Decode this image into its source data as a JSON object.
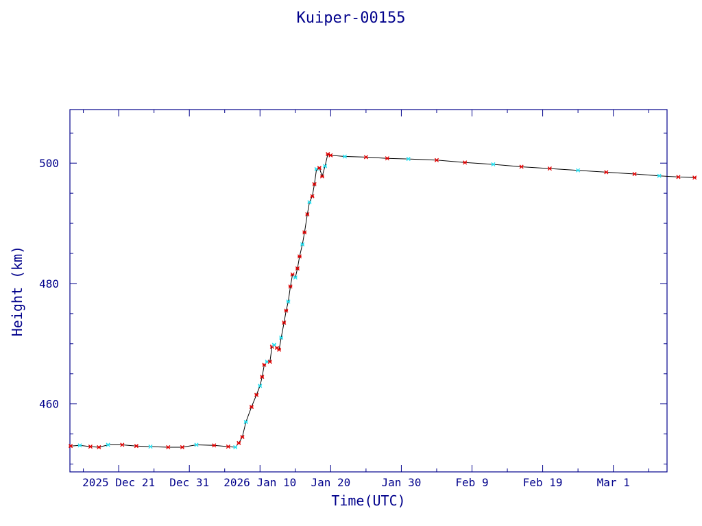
{
  "chart_data": {
    "type": "line",
    "title": "Kuiper-00155",
    "xlabel": "Time(UTC)",
    "ylabel": "Height (km)",
    "x_domain_days": [
      -16.9,
      67.6
    ],
    "ylim": [
      448.7,
      508.9
    ],
    "x_ticks": [
      {
        "day": -10,
        "label": "2025 Dec 21"
      },
      {
        "day": 0,
        "label": "Dec 31"
      },
      {
        "day": 10,
        "label": "2026 Jan 10"
      },
      {
        "day": 20,
        "label": "Jan 20"
      },
      {
        "day": 30,
        "label": "Jan 30"
      },
      {
        "day": 40,
        "label": "Feb  9"
      },
      {
        "day": 50,
        "label": "Feb 19"
      },
      {
        "day": 60,
        "label": "Mar  1"
      }
    ],
    "y_ticks": [
      460,
      480,
      500
    ],
    "colors": {
      "axis": "#00008b",
      "line": "#000000",
      "marker_a": "#dd0000",
      "marker_b": "#22ddee"
    },
    "series": [
      {
        "values": [
          [
            -16.8,
            453.0
          ],
          [
            -15.5,
            453.1
          ],
          [
            -14.0,
            452.9
          ],
          [
            -12.8,
            452.8
          ],
          [
            -11.5,
            453.2
          ],
          [
            -9.5,
            453.2
          ],
          [
            -7.5,
            453.0
          ],
          [
            -5.5,
            452.9
          ],
          [
            -3.0,
            452.8
          ],
          [
            -1.0,
            452.8
          ],
          [
            1.0,
            453.2
          ],
          [
            3.5,
            453.1
          ],
          [
            5.5,
            452.9
          ],
          [
            6.5,
            452.8
          ],
          [
            7.0,
            453.5
          ],
          [
            7.5,
            454.5
          ],
          [
            8.0,
            457.0
          ],
          [
            8.8,
            459.5
          ],
          [
            9.5,
            461.5
          ],
          [
            10.0,
            463.0
          ],
          [
            10.3,
            464.5
          ],
          [
            10.6,
            466.5
          ],
          [
            11.0,
            467.0
          ],
          [
            11.4,
            467.0
          ],
          [
            11.7,
            469.5
          ],
          [
            12.0,
            469.8
          ],
          [
            12.4,
            469.3
          ],
          [
            12.7,
            469.0
          ],
          [
            13.0,
            471.0
          ],
          [
            13.4,
            473.5
          ],
          [
            13.7,
            475.5
          ],
          [
            14.0,
            477.0
          ],
          [
            14.3,
            479.5
          ],
          [
            14.6,
            481.5
          ],
          [
            15.0,
            481.0
          ],
          [
            15.3,
            482.5
          ],
          [
            15.6,
            484.5
          ],
          [
            16.0,
            486.5
          ],
          [
            16.3,
            488.5
          ],
          [
            16.7,
            491.5
          ],
          [
            17.0,
            493.5
          ],
          [
            17.4,
            494.5
          ],
          [
            17.7,
            496.5
          ],
          [
            18.0,
            499.0
          ],
          [
            18.4,
            499.2
          ],
          [
            18.8,
            497.8
          ],
          [
            19.2,
            499.5
          ],
          [
            19.6,
            501.5
          ],
          [
            20.0,
            501.3
          ],
          [
            22.0,
            501.1
          ],
          [
            25.0,
            501.0
          ],
          [
            28.0,
            500.8
          ],
          [
            31.0,
            500.7
          ],
          [
            35.0,
            500.5
          ],
          [
            39.0,
            500.1
          ],
          [
            43.0,
            499.8
          ],
          [
            47.0,
            499.4
          ],
          [
            51.0,
            499.1
          ],
          [
            55.0,
            498.8
          ],
          [
            59.0,
            498.5
          ],
          [
            63.0,
            498.2
          ],
          [
            66.5,
            497.9
          ],
          [
            69.2,
            497.7
          ],
          [
            71.5,
            497.6
          ]
        ]
      }
    ]
  }
}
